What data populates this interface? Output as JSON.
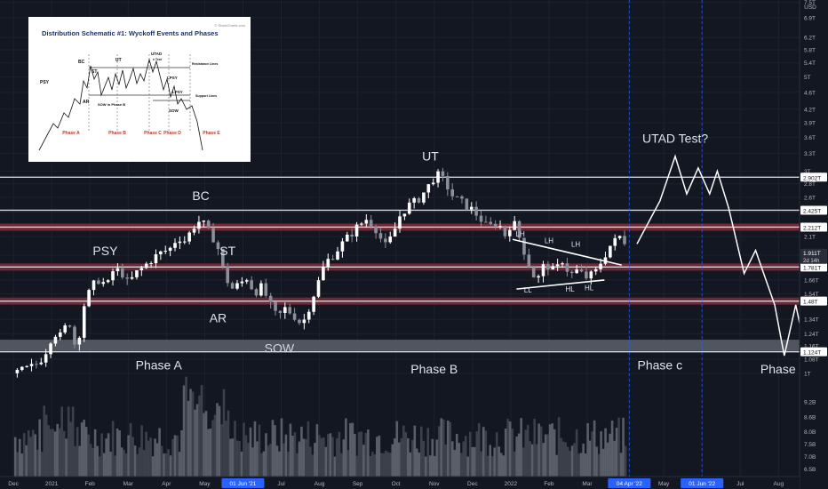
{
  "chart_data": {
    "type": "candlestick",
    "title": "",
    "ylabel": "",
    "xlabel": "",
    "yscale": "log",
    "ylim": [
      0.98,
      7.6
    ],
    "price_axis_ticks": [
      "7.5T",
      "6.9T",
      "6.2T",
      "5.8T",
      "5.4T",
      "5T",
      "4.6T",
      "4.2T",
      "3.9T",
      "3.6T",
      "3.3T",
      "3T",
      "2.8T",
      "2.6T",
      "2.4T",
      "2.1T",
      "1.9T",
      "1.66T",
      "1.54T",
      "1.47T",
      "1.34T",
      "1.24T",
      "1.16T",
      "1.08T",
      "1T"
    ],
    "price_axis_tick_values": [
      7.5,
      6.9,
      6.2,
      5.8,
      5.4,
      5.0,
      4.6,
      4.2,
      3.9,
      3.6,
      3.3,
      3.0,
      2.8,
      2.6,
      2.4,
      2.1,
      1.9,
      1.66,
      1.54,
      1.47,
      1.34,
      1.24,
      1.16,
      1.08,
      1.0
    ],
    "unit_label": "USD",
    "volume_axis_ticks": [
      "9.2B",
      "8.6B",
      "8.0B",
      "7.5B",
      "7.0B",
      "6.5B"
    ],
    "volume_axis_tick_values": [
      9.2,
      8.6,
      8.0,
      7.5,
      7.0,
      6.5
    ],
    "volume_ylim": [
      6.2,
      10.2
    ],
    "time_axis": [
      {
        "label": "Dec",
        "t": 0,
        "highlight": false
      },
      {
        "label": "2021",
        "t": 1,
        "highlight": false
      },
      {
        "label": "Feb",
        "t": 2,
        "highlight": false
      },
      {
        "label": "Mar",
        "t": 3,
        "highlight": false
      },
      {
        "label": "Apr",
        "t": 4,
        "highlight": false
      },
      {
        "label": "May",
        "t": 5,
        "highlight": false
      },
      {
        "label": "01 Jun '21",
        "t": 6,
        "highlight": true
      },
      {
        "label": "Jul",
        "t": 7,
        "highlight": false
      },
      {
        "label": "Aug",
        "t": 8,
        "highlight": false
      },
      {
        "label": "Sep",
        "t": 9,
        "highlight": false
      },
      {
        "label": "Oct",
        "t": 10,
        "highlight": false
      },
      {
        "label": "Nov",
        "t": 11,
        "highlight": false
      },
      {
        "label": "Dec",
        "t": 12,
        "highlight": false
      },
      {
        "label": "2022",
        "t": 13,
        "highlight": false
      },
      {
        "label": "Feb",
        "t": 14,
        "highlight": false
      },
      {
        "label": "Mar",
        "t": 15,
        "highlight": false
      },
      {
        "label": "04 Apr '22",
        "t": 16.1,
        "highlight": true
      },
      {
        "label": "May",
        "t": 17,
        "highlight": false
      },
      {
        "label": "01 Jun '22",
        "t": 18,
        "highlight": true
      },
      {
        "label": "Jul",
        "t": 19,
        "highlight": false
      },
      {
        "label": "Aug",
        "t": 20,
        "highlight": false
      }
    ],
    "t_range": [
      -0.35,
      20.55
    ],
    "price_path": [
      [
        0.05,
        1.0
      ],
      [
        0.3,
        1.02
      ],
      [
        0.55,
        1.04
      ],
      [
        0.8,
        1.1
      ],
      [
        1.05,
        1.25
      ],
      [
        1.25,
        1.22
      ],
      [
        1.45,
        1.34
      ],
      [
        1.65,
        1.12
      ],
      [
        1.85,
        1.45
      ],
      [
        2.05,
        1.6
      ],
      [
        2.25,
        1.67
      ],
      [
        2.45,
        1.6
      ],
      [
        2.6,
        1.74
      ],
      [
        2.8,
        1.75
      ],
      [
        3.0,
        1.62
      ],
      [
        3.2,
        1.72
      ],
      [
        3.4,
        1.78
      ],
      [
        3.65,
        1.87
      ],
      [
        3.85,
        1.92
      ],
      [
        4.1,
        1.97
      ],
      [
        4.3,
        2.1
      ],
      [
        4.5,
        2.05
      ],
      [
        4.7,
        2.22
      ],
      [
        4.9,
        2.3
      ],
      [
        5.1,
        2.15
      ],
      [
        5.3,
        2.05
      ],
      [
        5.5,
        1.72
      ],
      [
        5.7,
        1.58
      ],
      [
        5.9,
        1.62
      ],
      [
        6.1,
        1.68
      ],
      [
        6.3,
        1.55
      ],
      [
        6.5,
        1.6
      ],
      [
        6.7,
        1.45
      ],
      [
        6.9,
        1.35
      ],
      [
        7.1,
        1.42
      ],
      [
        7.3,
        1.38
      ],
      [
        7.55,
        1.3
      ],
      [
        7.75,
        1.45
      ],
      [
        7.95,
        1.62
      ],
      [
        8.15,
        1.82
      ],
      [
        8.35,
        1.9
      ],
      [
        8.55,
        2.0
      ],
      [
        8.8,
        2.12
      ],
      [
        9.0,
        2.22
      ],
      [
        9.25,
        2.32
      ],
      [
        9.5,
        2.18
      ],
      [
        9.7,
        1.98
      ],
      [
        9.9,
        2.1
      ],
      [
        10.1,
        2.35
      ],
      [
        10.3,
        2.48
      ],
      [
        10.55,
        2.55
      ],
      [
        10.8,
        2.72
      ],
      [
        11.05,
        2.95
      ],
      [
        11.25,
        2.85
      ],
      [
        11.5,
        2.6
      ],
      [
        11.75,
        2.52
      ],
      [
        11.95,
        2.45
      ],
      [
        12.2,
        2.32
      ],
      [
        12.4,
        2.2
      ],
      [
        12.65,
        2.28
      ],
      [
        12.85,
        2.12
      ],
      [
        13.05,
        2.3
      ],
      [
        13.3,
        2.0
      ],
      [
        13.55,
        1.72
      ],
      [
        13.7,
        1.66
      ],
      [
        13.9,
        1.82
      ],
      [
        14.15,
        1.73
      ],
      [
        14.35,
        1.85
      ],
      [
        14.55,
        1.7
      ],
      [
        14.75,
        1.75
      ],
      [
        14.95,
        1.68
      ],
      [
        15.2,
        1.72
      ],
      [
        15.4,
        1.86
      ],
      [
        15.6,
        2.0
      ],
      [
        15.85,
        2.1
      ],
      [
        16.05,
        2.02
      ]
    ],
    "projection_path": [
      [
        16.3,
        2.02
      ],
      [
        16.9,
        2.55
      ],
      [
        17.3,
        3.25
      ],
      [
        17.6,
        2.65
      ],
      [
        17.9,
        3.05
      ],
      [
        18.2,
        2.65
      ],
      [
        18.4,
        3.0
      ],
      [
        18.7,
        2.45
      ],
      [
        19.1,
        1.72
      ],
      [
        19.4,
        1.95
      ],
      [
        19.9,
        1.45
      ],
      [
        20.15,
        1.1
      ],
      [
        20.45,
        1.45
      ],
      [
        20.75,
        1.08
      ],
      [
        21.05,
        1.26
      ],
      [
        21.3,
        1.05
      ]
    ],
    "horizontal_levels": [
      {
        "value": 2.902,
        "label": "2.902T",
        "style": "line",
        "span": "full"
      },
      {
        "value": 2.425,
        "label": "2.425T",
        "style": "line",
        "span": "full"
      },
      {
        "value": 2.212,
        "label": "2.212T",
        "style": "band",
        "span": "full"
      },
      {
        "value": 1.781,
        "label": "1.781T",
        "style": "band",
        "span": "full"
      },
      {
        "value": 1.48,
        "label": "1.48T",
        "style": "band",
        "span": "full"
      },
      {
        "value": 1.124,
        "label": "1.124T",
        "style": "line",
        "span": "full"
      }
    ],
    "current_price": {
      "value": 1.911,
      "label": "1.911T",
      "sublabel": "2d 14h"
    },
    "zones": [
      {
        "from": 1.13,
        "to": 1.2,
        "label": "SOW",
        "color": "#5d606b"
      }
    ],
    "event_labels": [
      {
        "text": "PSY",
        "t": 2.4,
        "value": 1.9
      },
      {
        "text": "BC",
        "t": 4.9,
        "value": 2.56
      },
      {
        "text": "ST",
        "t": 5.6,
        "value": 1.9
      },
      {
        "text": "AR",
        "t": 5.35,
        "value": 1.32
      },
      {
        "text": "UT",
        "t": 10.9,
        "value": 3.18
      },
      {
        "text": "UTAD Test?",
        "t": 17.3,
        "value": 3.5
      }
    ],
    "phase_labels": [
      {
        "text": "Phase A",
        "t": 3.8,
        "value": 1.02
      },
      {
        "text": "Phase B",
        "t": 11.0,
        "value": 1.0
      },
      {
        "text": "Phase c",
        "t": 16.9,
        "value": 1.02
      },
      {
        "text": "Phase D",
        "t": 20.15,
        "value": 1.0
      }
    ],
    "pattern_labels": [
      {
        "text": "LH",
        "t": 13.25,
        "value": 2.1
      },
      {
        "text": "LH",
        "t": 14.0,
        "value": 2.03
      },
      {
        "text": "LH",
        "t": 14.7,
        "value": 1.99
      },
      {
        "text": "LL",
        "t": 13.45,
        "value": 1.55
      },
      {
        "text": "HL",
        "t": 14.55,
        "value": 1.56
      },
      {
        "text": "HL",
        "t": 15.05,
        "value": 1.57
      }
    ],
    "triangle_lines": [
      [
        [
          13.05,
          2.07
        ],
        [
          15.9,
          1.8
        ]
      ],
      [
        [
          13.15,
          1.58
        ],
        [
          15.45,
          1.66
        ]
      ]
    ],
    "vertical_markers": [
      16.1,
      18.0
    ],
    "volume_seed": 7,
    "inset": {
      "title": "Distribution Schematic #1: Wyckoff Events and Phases",
      "watermark": "© StockCharts.com",
      "labels": {
        "psy": "PSY",
        "bc": "BC",
        "st": "ST",
        "ar": "AR",
        "ut": "UT",
        "utad": "UTAD",
        "test": "± Test",
        "lpsy_top": "LPSY",
        "lpsy_bottom": "LPSY",
        "sow": "SOW",
        "sow_phase_b": "SOW in Phase B",
        "resistance": "Resistance Lines",
        "support": "Support Lines"
      },
      "phases": [
        "Phase A",
        "Phase B",
        "Phase C",
        "Phase D",
        "Phase E"
      ]
    },
    "colors": {
      "background": "#131722",
      "grid": "#1e222d",
      "candle_up": "#ffffff",
      "candle_down": "#8b8f99",
      "level": "#d1d4dc",
      "band": "#7b2a35",
      "zone": "#5d606b",
      "volume": "#4a4e59",
      "marker": "#2962ff",
      "inset_title": "#1d2f6f",
      "inset_phase": "#c0392b"
    }
  }
}
